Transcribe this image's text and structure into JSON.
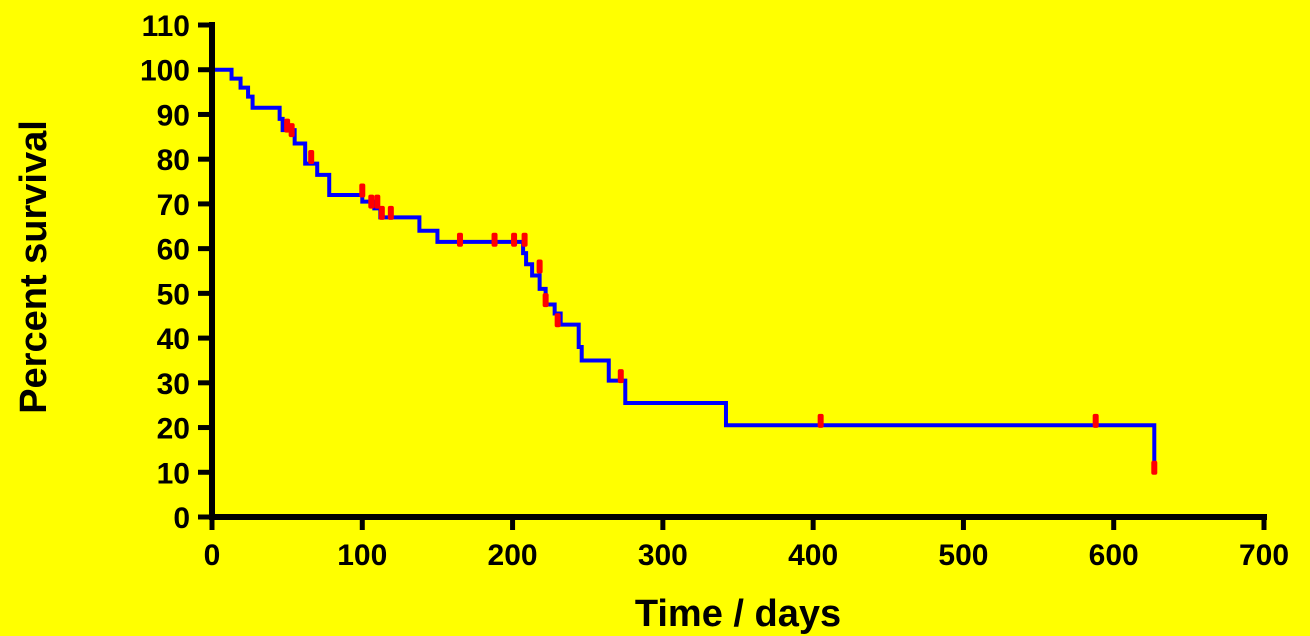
{
  "chart_data": {
    "type": "line",
    "title": "",
    "xlabel": "Time / days",
    "ylabel": "Percent survival",
    "xlim": [
      0,
      700
    ],
    "ylim": [
      0,
      110
    ],
    "xticks": [
      0,
      100,
      200,
      300,
      400,
      500,
      600,
      700
    ],
    "yticks": [
      0,
      10,
      20,
      30,
      40,
      50,
      60,
      70,
      80,
      90,
      100,
      110
    ],
    "grid": false,
    "series": [
      {
        "style": "step",
        "color": "#0000FF",
        "steps": [
          [
            0,
            100
          ],
          [
            13,
            98
          ],
          [
            19,
            96
          ],
          [
            24,
            94
          ],
          [
            27,
            91.5
          ],
          [
            45,
            89
          ],
          [
            47,
            86.5
          ],
          [
            55,
            83.5
          ],
          [
            62,
            79
          ],
          [
            70,
            76.5
          ],
          [
            78,
            72
          ],
          [
            100,
            70.5
          ],
          [
            108,
            69
          ],
          [
            112,
            67
          ],
          [
            138,
            64
          ],
          [
            150,
            61.5
          ],
          [
            207,
            59
          ],
          [
            209,
            56.5
          ],
          [
            213,
            54
          ],
          [
            218,
            51
          ],
          [
            222,
            47.5
          ],
          [
            228,
            45.5
          ],
          [
            232,
            43
          ],
          [
            244,
            38
          ],
          [
            246,
            35
          ],
          [
            264,
            30.5
          ],
          [
            275,
            25.5
          ],
          [
            342,
            20.5
          ],
          [
            627,
            20.5
          ],
          [
            627,
            11
          ]
        ],
        "end_x": 627
      }
    ],
    "censored": {
      "color": "#FF0000",
      "points": [
        [
          50,
          87.5
        ],
        [
          53,
          86.5
        ],
        [
          66,
          80.5
        ],
        [
          100,
          73
        ],
        [
          106,
          70.5
        ],
        [
          110,
          70.5
        ],
        [
          113,
          68
        ],
        [
          119,
          68
        ],
        [
          165,
          62
        ],
        [
          188,
          62
        ],
        [
          201,
          62
        ],
        [
          208,
          62
        ],
        [
          218,
          56
        ],
        [
          222,
          48.5
        ],
        [
          230,
          44
        ],
        [
          272,
          31.5
        ],
        [
          405,
          21.5
        ],
        [
          588,
          21.5
        ],
        [
          627,
          11
        ]
      ]
    },
    "colors": {
      "background": "#FFFF00",
      "line": "#0000FF",
      "censor": "#FF0000",
      "axis": "#000000"
    }
  }
}
